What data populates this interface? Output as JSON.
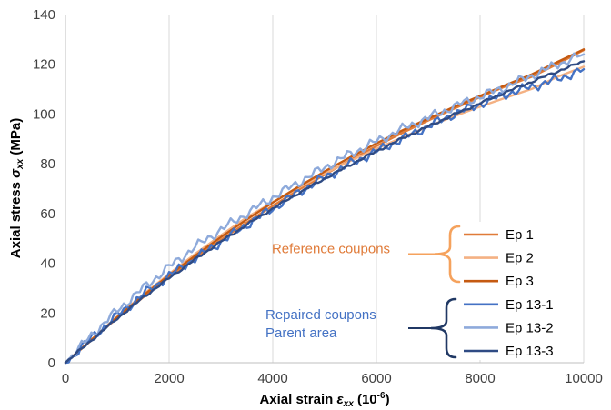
{
  "chart_data": {
    "type": "line",
    "xlabel": "Axial strain",
    "xlabel_symbol": "ε",
    "xlabel_symbol_sub": "xx",
    "xlabel_unit_pre": " (10",
    "xlabel_unit_exp": "-6",
    "xlabel_unit_post": ")",
    "ylabel": "Axial stress ",
    "ylabel_symbol": "σ",
    "ylabel_symbol_sub": "xx",
    "ylabel_unit": " (MPa)",
    "xlim": [
      0,
      10000
    ],
    "ylim": [
      0,
      140
    ],
    "x_ticks": [
      "0",
      "2000",
      "4000",
      "6000",
      "8000",
      "10000"
    ],
    "y_ticks": [
      "0",
      "20",
      "40",
      "60",
      "80",
      "100",
      "120",
      "140"
    ],
    "grid": "vertical",
    "legend_position": "right-bottom inside plot",
    "groups": [
      {
        "label": "Reference coupons",
        "color": "#e07b39",
        "brace_color": "#f5a25d",
        "series_indices": [
          0,
          1,
          2
        ]
      },
      {
        "label_lines": [
          "Repaired coupons",
          "Parent area"
        ],
        "color": "#4472c4",
        "brace_color": "#203864",
        "series_indices": [
          3,
          4,
          5
        ]
      }
    ],
    "series": [
      {
        "name": "Ep 1",
        "color": "#e07b39",
        "noise": 0,
        "x": [
          0,
          500,
          1000,
          1500,
          2000,
          2500,
          3000,
          3500,
          4000,
          4500,
          5000,
          5500,
          6000,
          6500,
          7000,
          7500,
          8000,
          8500,
          9000,
          9500,
          10000
        ],
        "y": [
          0,
          9.0,
          18.0,
          26.3,
          34.4,
          42.0,
          49.4,
          56.4,
          63.1,
          69.5,
          75.6,
          81.6,
          87.1,
          92.4,
          97.4,
          102.2,
          106.8,
          111.2,
          115.0,
          120.2,
          125.7
        ]
      },
      {
        "name": "Ep 2",
        "color": "#f4b183",
        "noise": 0,
        "x": [
          0,
          500,
          1000,
          1500,
          2000,
          2500,
          3000,
          3500,
          4000,
          4500,
          5000,
          5500,
          6000,
          6500,
          7000,
          7500,
          8000,
          8500,
          9000,
          9500,
          10000
        ],
        "y": [
          0,
          9.3,
          18.6,
          27.4,
          35.7,
          43.7,
          51.2,
          58.5,
          64.5,
          70.4,
          76.1,
          81.2,
          86.0,
          90.6,
          95.0,
          99.1,
          103.0,
          106.6,
          110.1,
          115.0,
          119.0
        ]
      },
      {
        "name": "Ep 3",
        "color": "#c55a11",
        "noise": 0,
        "x": [
          0,
          500,
          1000,
          1500,
          2000,
          2500,
          3000,
          3500,
          4000,
          4500,
          5000,
          5500,
          6000,
          6500,
          7000,
          7500,
          8000,
          8500,
          9000,
          9500,
          10000
        ],
        "y": [
          0,
          9.2,
          18.3,
          27.0,
          35.2,
          43.0,
          50.5,
          57.6,
          64.4,
          70.8,
          76.9,
          82.7,
          88.2,
          93.4,
          98.2,
          102.9,
          107.3,
          111.7,
          116.0,
          121.0,
          126.0
        ]
      },
      {
        "name": "Ep 13-1",
        "color": "#4472c4",
        "noise": 2.2,
        "x": [
          0,
          500,
          1000,
          1500,
          2000,
          2500,
          3000,
          3500,
          4000,
          4500,
          5000,
          5500,
          6000,
          6500,
          7000,
          7500,
          8000,
          8500,
          9000,
          9500,
          10000
        ],
        "y": [
          0,
          10.0,
          19.0,
          27.5,
          35.0,
          42.0,
          48.5,
          55.5,
          62.0,
          68.5,
          74.5,
          80.0,
          85.0,
          90.0,
          95.0,
          100.0,
          104.0,
          108.0,
          111.0,
          114.0,
          118.0
        ]
      },
      {
        "name": "Ep 13-2",
        "color": "#8eaadb",
        "noise": 2.2,
        "x": [
          0,
          500,
          1000,
          1500,
          2000,
          2500,
          3000,
          3500,
          4000,
          4500,
          5000,
          5500,
          6000,
          6500,
          7000,
          7500,
          8000,
          8500,
          9000,
          9500,
          10000
        ],
        "y": [
          0,
          11.0,
          21.0,
          30.0,
          38.5,
          46.5,
          53.5,
          60.0,
          66.5,
          72.5,
          78.5,
          84.0,
          89.0,
          94.0,
          98.5,
          103.0,
          107.0,
          111.0,
          115.5,
          120.0,
          124.0
        ]
      },
      {
        "name": "Ep 13-3",
        "color": "#2f4b84",
        "noise": 0.6,
        "x": [
          0,
          500,
          1000,
          1500,
          2000,
          2500,
          3000,
          3500,
          4000,
          4500,
          5000,
          5500,
          6000,
          6500,
          7000,
          7500,
          8000,
          8500,
          9000,
          9500,
          10000
        ],
        "y": [
          0,
          9.0,
          17.8,
          26.2,
          34.0,
          41.5,
          48.7,
          55.5,
          62.0,
          68.2,
          74.0,
          79.6,
          85.0,
          90.2,
          95.0,
          99.8,
          104.3,
          108.8,
          113.0,
          117.2,
          121.2
        ]
      }
    ]
  }
}
